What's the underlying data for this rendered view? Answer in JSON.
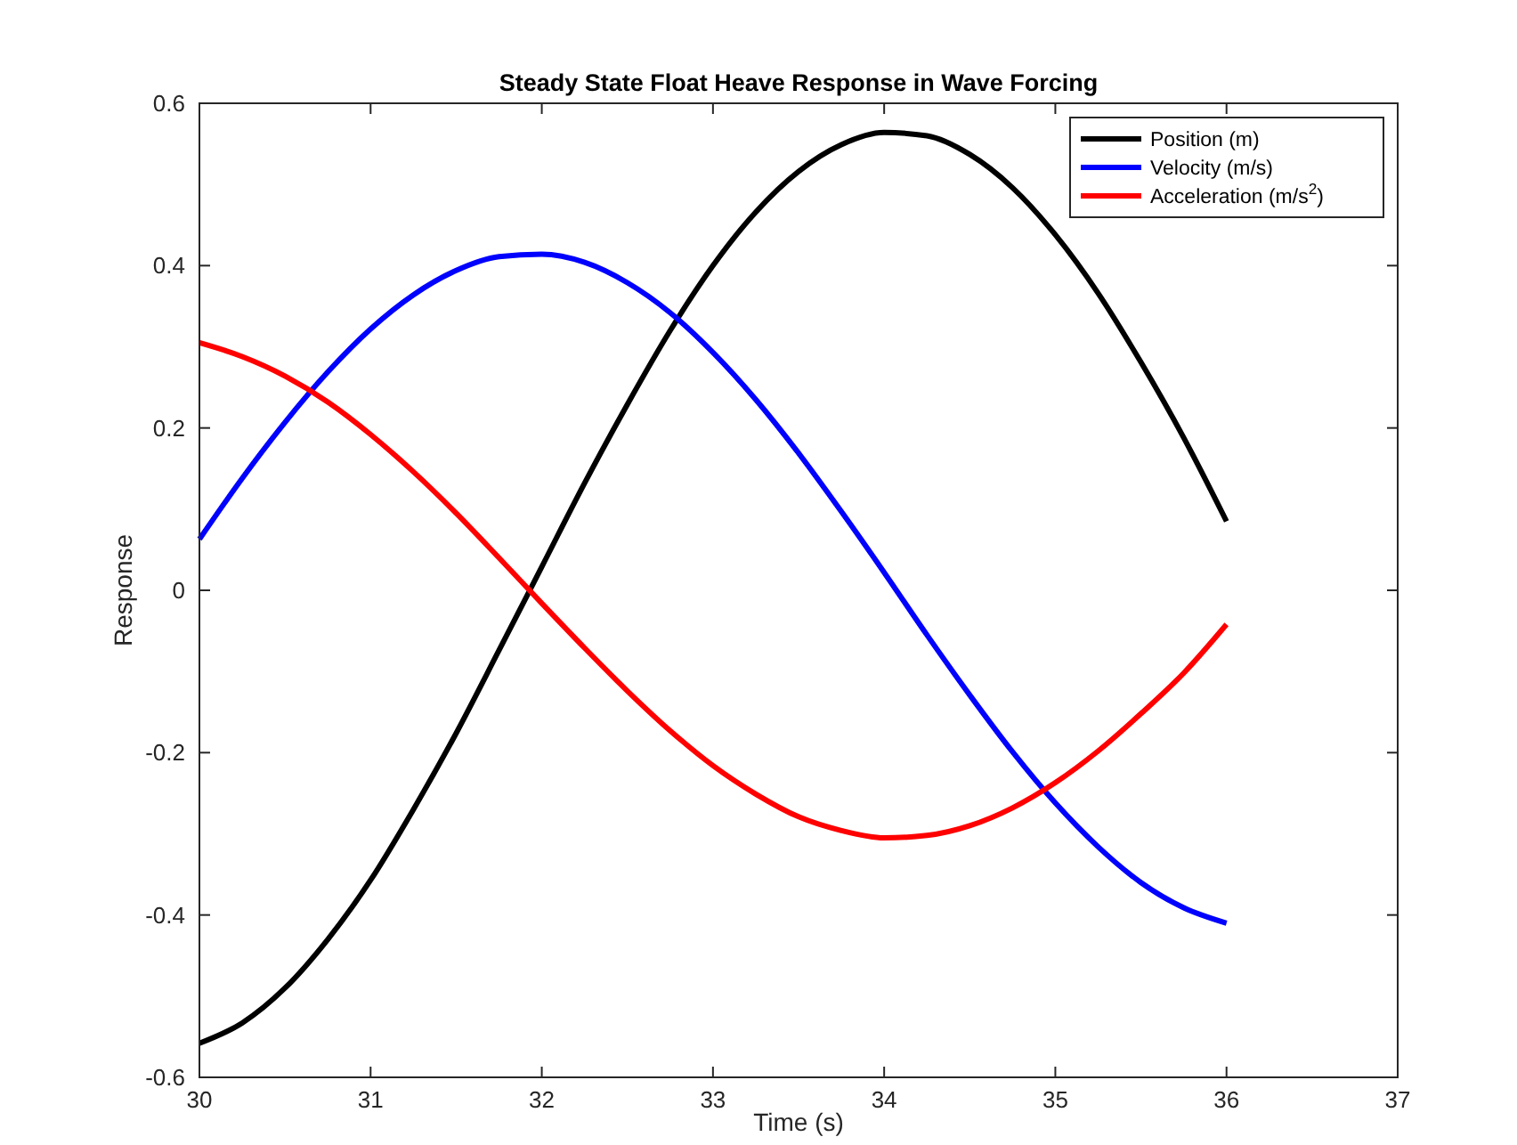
{
  "chart_data": {
    "type": "line",
    "title": "Steady State Float Heave Response in Wave Forcing",
    "xlabel": "Time (s)",
    "ylabel": "Response",
    "x": [
      30,
      30.25,
      30.5,
      30.75,
      31,
      31.25,
      31.5,
      31.75,
      32,
      32.25,
      32.5,
      32.75,
      33,
      33.25,
      33.5,
      33.75,
      34,
      34.25,
      34.5,
      34.75,
      35,
      35.25,
      35.5,
      35.75,
      36
    ],
    "series": [
      {
        "name": "Position (m)",
        "color": "#000000",
        "values": [
          -0.558,
          -0.533,
          -0.49,
          -0.43,
          -0.357,
          -0.27,
          -0.176,
          -0.074,
          0.029,
          0.132,
          0.229,
          0.32,
          0.4,
          0.466,
          0.516,
          0.549,
          0.564,
          0.56,
          0.537,
          0.496,
          0.438,
          0.366,
          0.281,
          0.188,
          0.085
        ]
      },
      {
        "name": "Velocity (m/s)",
        "color": "#0000ff",
        "values": [
          0.063,
          0.138,
          0.207,
          0.269,
          0.322,
          0.364,
          0.394,
          0.411,
          0.414,
          0.404,
          0.379,
          0.342,
          0.293,
          0.235,
          0.169,
          0.097,
          0.022,
          -0.055,
          -0.129,
          -0.199,
          -0.262,
          -0.316,
          -0.36,
          -0.391,
          -0.41
        ]
      },
      {
        "name": "Acceleration (m/s$^{2}$)",
        "color": "#ff0000",
        "values": [
          0.305,
          0.288,
          0.264,
          0.232,
          0.192,
          0.146,
          0.095,
          0.04,
          -0.016,
          -0.071,
          -0.124,
          -0.173,
          -0.216,
          -0.251,
          -0.279,
          -0.296,
          -0.305,
          -0.302,
          -0.29,
          -0.268,
          -0.237,
          -0.198,
          -0.152,
          -0.102,
          -0.042
        ]
      }
    ],
    "xlim": [
      30,
      37
    ],
    "xticks": [
      30,
      31,
      32,
      33,
      34,
      35,
      36,
      37
    ],
    "ylim": [
      -0.6,
      0.6
    ],
    "yticks": [
      -0.6,
      -0.4,
      -0.2,
      0,
      0.2,
      0.4,
      0.6
    ],
    "legend": "top right",
    "grid": false,
    "line_style": "solid",
    "marker": "none"
  }
}
